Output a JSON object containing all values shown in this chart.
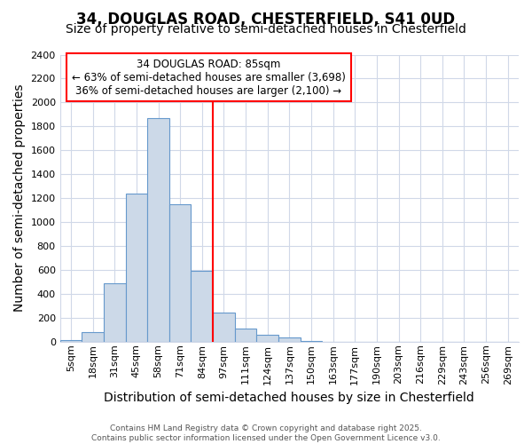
{
  "title_line1": "34, DOUGLAS ROAD, CHESTERFIELD, S41 0UD",
  "title_line2": "Size of property relative to semi-detached houses in Chesterfield",
  "xlabel": "Distribution of semi-detached houses by size in Chesterfield",
  "ylabel": "Number of semi-detached properties",
  "bar_labels": [
    "5sqm",
    "18sqm",
    "31sqm",
    "45sqm",
    "58sqm",
    "71sqm",
    "84sqm",
    "97sqm",
    "111sqm",
    "124sqm",
    "137sqm",
    "150sqm",
    "163sqm",
    "177sqm",
    "190sqm",
    "203sqm",
    "216sqm",
    "229sqm",
    "243sqm",
    "256sqm",
    "269sqm"
  ],
  "bar_values": [
    15,
    80,
    490,
    1240,
    1870,
    1150,
    590,
    240,
    110,
    60,
    35,
    5,
    0,
    0,
    0,
    0,
    0,
    0,
    0,
    0,
    0
  ],
  "bar_color": "#ccd9e8",
  "bar_edge_color": "#6699cc",
  "vline_pos": 6,
  "vline_color": "red",
  "annotation_line1": "34 DOUGLAS ROAD: 85sqm",
  "annotation_line2": "← 63% of semi-detached houses are smaller (3,698)",
  "annotation_line3": "36% of semi-detached houses are larger (2,100) →",
  "annotation_box_color": "white",
  "annotation_box_edge": "red",
  "ylim": [
    0,
    2400
  ],
  "yticks": [
    0,
    200,
    400,
    600,
    800,
    1000,
    1200,
    1400,
    1600,
    1800,
    2000,
    2200,
    2400
  ],
  "footer": "Contains HM Land Registry data © Crown copyright and database right 2025.\nContains public sector information licensed under the Open Government Licence v3.0.",
  "bg_color": "#ffffff",
  "plot_bg_color": "#ffffff",
  "grid_color": "#d0d8e8",
  "title_fontsize": 12,
  "subtitle_fontsize": 10,
  "axis_label_fontsize": 10,
  "tick_fontsize": 8,
  "annotation_fontsize": 8.5,
  "footer_fontsize": 6.5
}
